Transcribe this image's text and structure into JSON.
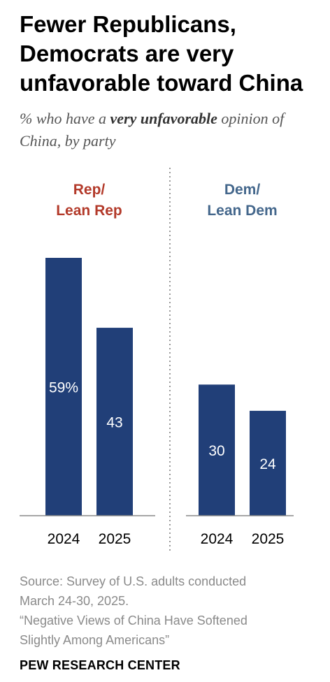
{
  "title": "Fewer Republicans, Democrats are very unfavorable toward China",
  "subtitle": {
    "before": "% who have a ",
    "emphasis": "very unfavorable",
    "after": " opinion of China, by party"
  },
  "colors": {
    "bar": "#213f78",
    "rep_label": "#b33a2a",
    "dem_label": "#44678c",
    "value_text": "#ffffff",
    "axis": "#888888",
    "divider": "#999999"
  },
  "chart_data": {
    "type": "bar",
    "ylim": [
      0,
      59
    ],
    "grid": false,
    "groups": [
      {
        "name_lines": [
          "Rep/",
          "Lean Rep"
        ],
        "color_key": "rep_label",
        "categories": [
          "2024",
          "2025"
        ],
        "values": [
          59,
          43
        ],
        "labels": [
          "59%",
          "43"
        ]
      },
      {
        "name_lines": [
          "Dem/",
          "Lean Dem"
        ],
        "color_key": "dem_label",
        "categories": [
          "2024",
          "2025"
        ],
        "values": [
          30,
          24
        ],
        "labels": [
          "30",
          "24"
        ]
      }
    ]
  },
  "source": {
    "line1": "Source: Survey of U.S. adults conducted",
    "line2": "March 24-30, 2025.",
    "line3": "“Negative Views of China Have Softened",
    "line4": "Slightly Among Americans”"
  },
  "brand": "PEW RESEARCH CENTER"
}
